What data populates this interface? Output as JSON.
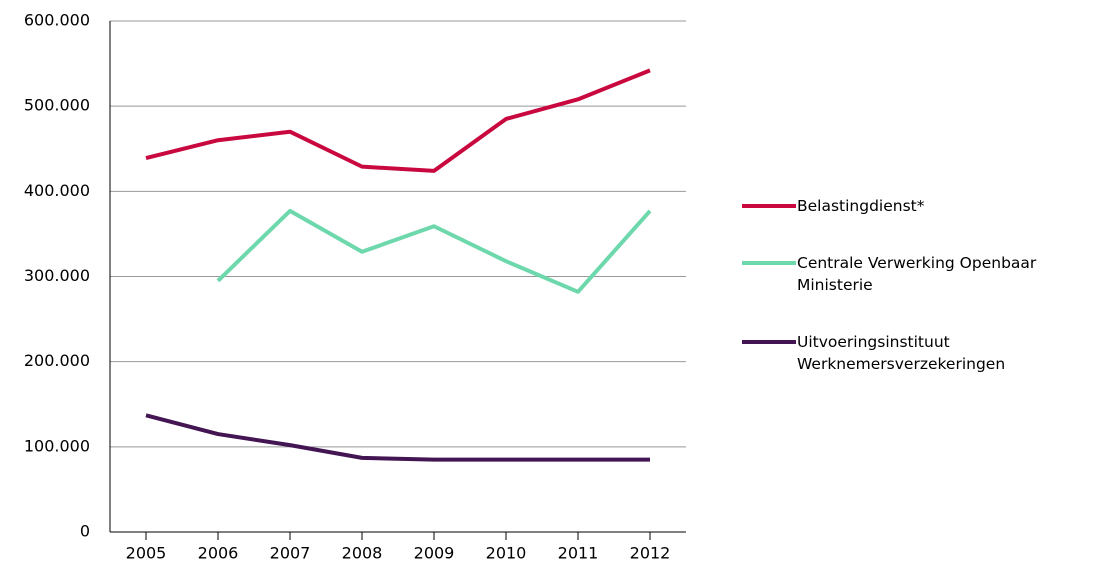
{
  "chart_data": {
    "type": "line",
    "categories": [
      "2005",
      "2006",
      "2007",
      "2008",
      "2009",
      "2010",
      "2011",
      "2012"
    ],
    "series": [
      {
        "name": "Belastingdienst*",
        "color": "#c8083f",
        "values": [
          439000,
          460000,
          470000,
          429000,
          424000,
          485000,
          508000,
          542000
        ]
      },
      {
        "name": "Centrale Verwerking Openbaar Ministerie",
        "color": "#6dd8ab",
        "values": [
          null,
          295000,
          377000,
          329000,
          359000,
          318000,
          282000,
          377000
        ]
      },
      {
        "name": "Uitvoeringsinstituut Werknemersverzekeringen",
        "color": "#431552",
        "values": [
          137000,
          115000,
          102000,
          87000,
          85000,
          85000,
          85000,
          85000
        ]
      }
    ],
    "ylim": [
      0,
      600000
    ],
    "yticks": [
      0,
      {
        "value": 100000,
        "label": "100.000"
      },
      {
        "value": 200000,
        "label": "200.000"
      },
      {
        "value": 300000,
        "label": "300.000"
      },
      {
        "value": 400000,
        "label": "400.000"
      },
      {
        "value": 500000,
        "label": "500.000"
      },
      {
        "value": 600000,
        "label": "600.000"
      }
    ],
    "grid": true
  }
}
